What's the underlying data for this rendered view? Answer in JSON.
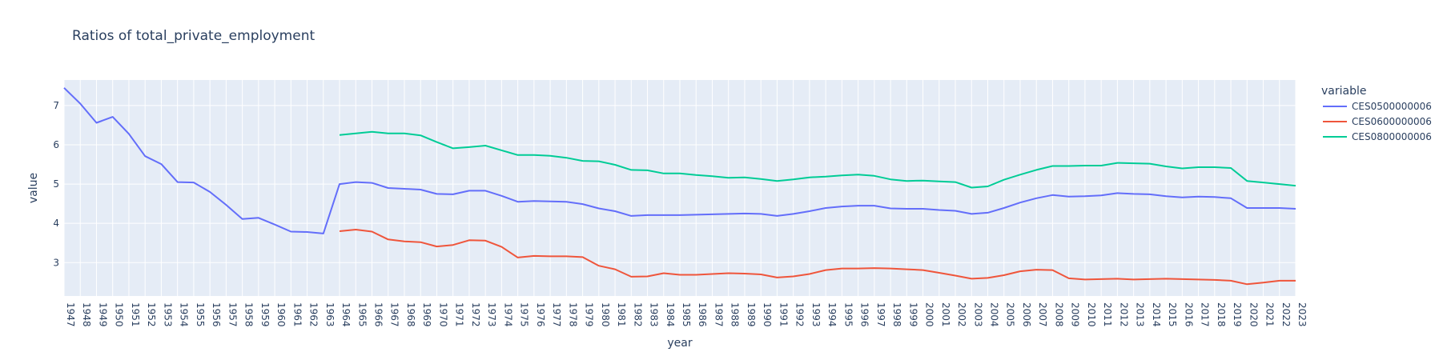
{
  "chart_data": {
    "type": "line",
    "title": "Ratios of total_private_employment",
    "xlabel": "year",
    "ylabel": "value",
    "xlim": [
      1947,
      2023
    ],
    "ylim": [
      2.15,
      7.65
    ],
    "y_ticks": [
      3,
      4,
      5,
      6,
      7
    ],
    "grid": true,
    "legend_title": "variable",
    "legend_position": "right",
    "x": [
      1947,
      1948,
      1949,
      1950,
      1951,
      1952,
      1953,
      1954,
      1955,
      1956,
      1957,
      1958,
      1959,
      1960,
      1961,
      1962,
      1963,
      1964,
      1965,
      1966,
      1967,
      1968,
      1969,
      1970,
      1971,
      1972,
      1973,
      1974,
      1975,
      1976,
      1977,
      1978,
      1979,
      1980,
      1981,
      1982,
      1983,
      1984,
      1985,
      1986,
      1987,
      1988,
      1989,
      1990,
      1991,
      1992,
      1993,
      1994,
      1995,
      1996,
      1997,
      1998,
      1999,
      2000,
      2001,
      2002,
      2003,
      2004,
      2005,
      2006,
      2007,
      2008,
      2009,
      2010,
      2011,
      2012,
      2013,
      2014,
      2015,
      2016,
      2017,
      2018,
      2019,
      2020,
      2021,
      2022,
      2023
    ],
    "series": [
      {
        "name": "CES0500000006",
        "color": "#636efa",
        "values": [
          7.45,
          7.05,
          6.56,
          6.71,
          6.28,
          5.71,
          5.51,
          5.05,
          5.04,
          4.8,
          4.47,
          4.11,
          4.14,
          3.97,
          3.79,
          3.78,
          3.74,
          5.0,
          5.05,
          5.03,
          4.9,
          4.88,
          4.86,
          4.75,
          4.74,
          4.83,
          4.83,
          4.7,
          4.55,
          4.57,
          4.56,
          4.55,
          4.49,
          4.38,
          4.31,
          4.19,
          4.21,
          4.21,
          4.21,
          4.22,
          4.23,
          4.24,
          4.25,
          4.24,
          4.19,
          4.24,
          4.31,
          4.39,
          4.43,
          4.45,
          4.45,
          4.38,
          4.37,
          4.37,
          4.34,
          4.32,
          4.24,
          4.27,
          4.39,
          4.53,
          4.64,
          4.72,
          4.68,
          4.69,
          4.71,
          4.77,
          4.75,
          4.74,
          4.69,
          4.66,
          4.68,
          4.67,
          4.64,
          4.39,
          4.39,
          4.39,
          4.37
        ]
      },
      {
        "name": "CES0600000006",
        "color": "#ef553b",
        "values": [
          null,
          null,
          null,
          null,
          null,
          null,
          null,
          null,
          null,
          null,
          null,
          null,
          null,
          null,
          null,
          null,
          null,
          3.8,
          3.84,
          3.79,
          3.59,
          3.54,
          3.52,
          3.41,
          3.45,
          3.57,
          3.56,
          3.4,
          3.13,
          3.17,
          3.16,
          3.16,
          3.14,
          2.92,
          2.83,
          2.64,
          2.65,
          2.73,
          2.69,
          2.69,
          2.71,
          2.73,
          2.72,
          2.7,
          2.62,
          2.65,
          2.71,
          2.81,
          2.85,
          2.85,
          2.86,
          2.85,
          2.83,
          2.81,
          2.74,
          2.67,
          2.59,
          2.61,
          2.68,
          2.78,
          2.82,
          2.81,
          2.6,
          2.57,
          2.58,
          2.59,
          2.57,
          2.58,
          2.59,
          2.58,
          2.57,
          2.56,
          2.54,
          2.45,
          2.49,
          2.54,
          2.54
        ]
      },
      {
        "name": "CES0800000006",
        "color": "#00cc96",
        "values": [
          null,
          null,
          null,
          null,
          null,
          null,
          null,
          null,
          null,
          null,
          null,
          null,
          null,
          null,
          null,
          null,
          null,
          6.25,
          6.29,
          6.33,
          6.29,
          6.29,
          6.24,
          6.07,
          5.91,
          5.94,
          5.98,
          5.86,
          5.74,
          5.74,
          5.72,
          5.67,
          5.59,
          5.58,
          5.49,
          5.36,
          5.35,
          5.27,
          5.27,
          5.23,
          5.2,
          5.16,
          5.17,
          5.13,
          5.08,
          5.12,
          5.17,
          5.19,
          5.22,
          5.24,
          5.21,
          5.12,
          5.08,
          5.09,
          5.07,
          5.05,
          4.91,
          4.94,
          5.11,
          5.24,
          5.36,
          5.46,
          5.46,
          5.47,
          5.47,
          5.54,
          5.53,
          5.52,
          5.45,
          5.4,
          5.43,
          5.43,
          5.41,
          5.08,
          5.04,
          5.0,
          4.96
        ]
      }
    ]
  }
}
